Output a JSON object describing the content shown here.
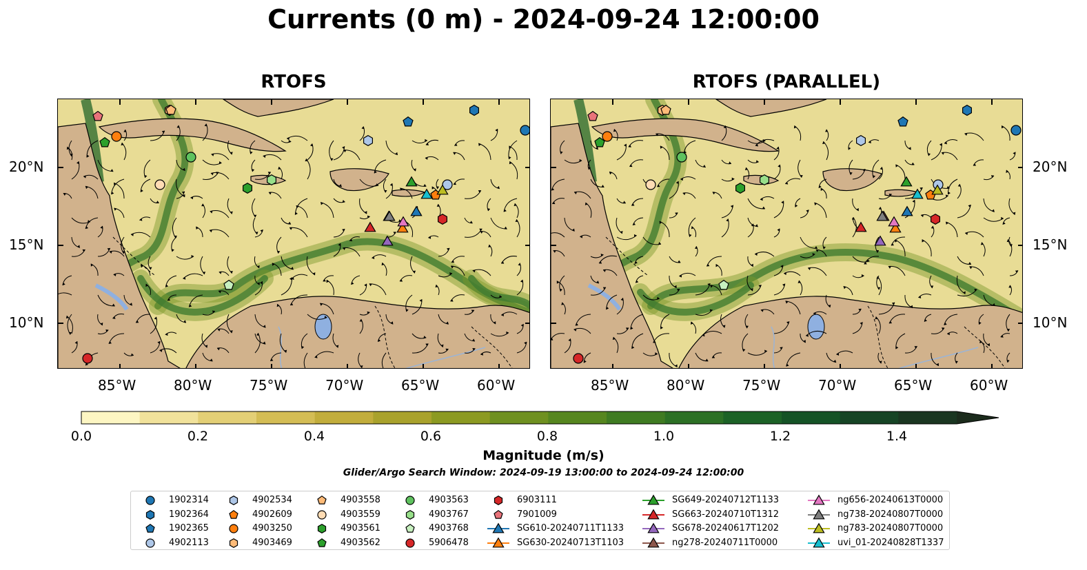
{
  "title": "Currents (0 m) - 2024-09-24 12:00:00",
  "panels": [
    {
      "title": "RTOFS"
    },
    {
      "title": "RTOFS (PARALLEL)"
    }
  ],
  "axes": {
    "lon_ticks": [
      "85°W",
      "80°W",
      "75°W",
      "70°W",
      "65°W",
      "60°W"
    ],
    "lat_ticks": [
      "20°N",
      "15°N",
      "10°N"
    ]
  },
  "colorbar": {
    "label": "Magnitude (m/s)",
    "ticks": [
      "0.0",
      "0.2",
      "0.4",
      "0.6",
      "0.8",
      "1.0",
      "1.2",
      "1.4"
    ],
    "range": [
      0.0,
      1.5
    ],
    "extend": "max",
    "colors": [
      "#fdf6c3",
      "#f1e29b",
      "#e3cf76",
      "#d4bd55",
      "#c2ad3c",
      "#a9a22c",
      "#8c9a22",
      "#6f9020",
      "#56861f",
      "#3f7b22",
      "#2c7025",
      "#1c6226",
      "#155326",
      "#164425",
      "#1a3621",
      "#1b2b1c"
    ]
  },
  "search_window": "Glider/Argo Search Window: 2024-09-19 13:00:00 to 2024-09-24 12:00:00",
  "legend": {
    "items": [
      {
        "label": "1902314",
        "marker": "circle",
        "color": "#1f77b4"
      },
      {
        "label": "1902364",
        "marker": "hexagon",
        "color": "#1f77b4"
      },
      {
        "label": "1902365",
        "marker": "pentagon",
        "color": "#1f77b4"
      },
      {
        "label": "4902113",
        "marker": "circle",
        "color": "#aec7e8"
      },
      {
        "label": "4902534",
        "marker": "hexagon",
        "color": "#aec7e8"
      },
      {
        "label": "4902609",
        "marker": "pentagon",
        "color": "#ff7f0e"
      },
      {
        "label": "4903250",
        "marker": "circle",
        "color": "#ff7f0e"
      },
      {
        "label": "4903469",
        "marker": "hexagon",
        "color": "#ffbb78"
      },
      {
        "label": "4903558",
        "marker": "pentagon",
        "color": "#ffbb78"
      },
      {
        "label": "4903559",
        "marker": "circle",
        "color": "#ffdcb4"
      },
      {
        "label": "4903561",
        "marker": "hexagon",
        "color": "#2ca02c"
      },
      {
        "label": "4903562",
        "marker": "pentagon",
        "color": "#2ca02c"
      },
      {
        "label": "4903563",
        "marker": "circle",
        "color": "#5fc25f"
      },
      {
        "label": "4903767",
        "marker": "hexagon",
        "color": "#98df8a"
      },
      {
        "label": "4903768",
        "marker": "pentagon",
        "color": "#c7f0bf"
      },
      {
        "label": "5906478",
        "marker": "circle",
        "color": "#d62728"
      },
      {
        "label": "6903111",
        "marker": "hexagon",
        "color": "#d62728"
      },
      {
        "label": "7901009",
        "marker": "pentagon",
        "color": "#e9737a"
      },
      {
        "label": "SG610-20240711T1133",
        "marker": "triangle-line",
        "color": "#1f77b4"
      },
      {
        "label": "SG630-20240713T1103",
        "marker": "triangle-line",
        "color": "#ff7f0e"
      },
      {
        "label": "SG649-20240712T1133",
        "marker": "triangle-line",
        "color": "#2ca02c"
      },
      {
        "label": "SG663-20240710T1312",
        "marker": "triangle-line",
        "color": "#d62728"
      },
      {
        "label": "SG678-20240617T1202",
        "marker": "triangle-line",
        "color": "#9467bd"
      },
      {
        "label": "ng278-20240711T0000",
        "marker": "triangle-line",
        "color": "#8c564b"
      },
      {
        "label": "ng656-20240613T0000",
        "marker": "triangle-line",
        "color": "#e377c2"
      },
      {
        "label": "ng738-20240807T0000",
        "marker": "triangle-line",
        "color": "#7f7f7f"
      },
      {
        "label": "ng783-20240807T0000",
        "marker": "triangle-line",
        "color": "#bcbd22"
      },
      {
        "label": "uvi_01-20240828T1337",
        "marker": "triangle-line",
        "color": "#17becf"
      }
    ]
  },
  "map_colors": {
    "land": "#d1b28c",
    "lake": "#8fb0e0",
    "river": "#9bb4d6",
    "ocean_base": "#e8dc95"
  }
}
